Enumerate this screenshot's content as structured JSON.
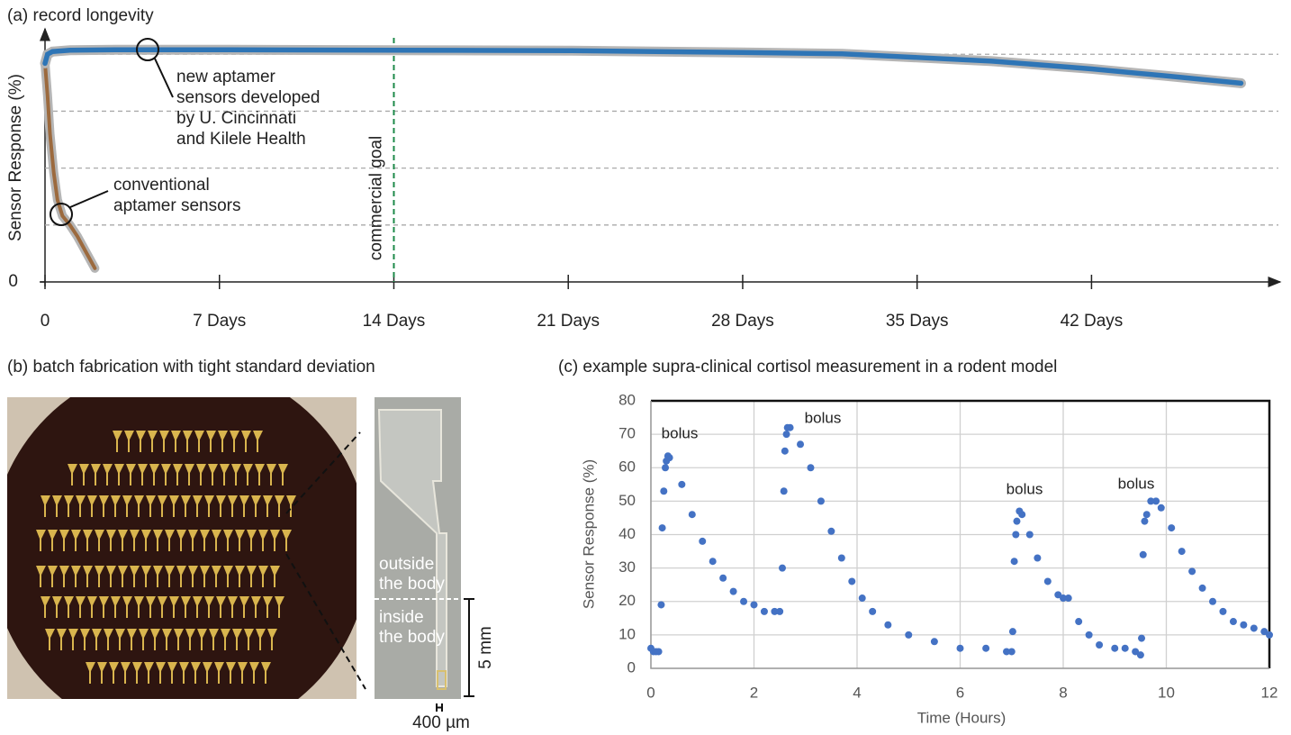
{
  "chart_data": [
    {
      "type": "line",
      "title": "(a) record longevity",
      "y_label": "Sensor Response (%)",
      "xlim": [
        0,
        49.5
      ],
      "ylim": [
        0,
        110
      ],
      "xticks": [
        0,
        {
          "value": 7,
          "label": "7 Days"
        },
        {
          "value": 14,
          "label": "14 Days"
        },
        {
          "value": 21,
          "label": "21 Days"
        },
        {
          "value": 28,
          "label": "28 Days"
        },
        {
          "value": 35,
          "label": "35 Days"
        },
        {
          "value": 42,
          "label": "42 Days"
        }
      ],
      "yticks": [
        0
      ],
      "ygrid": [
        25,
        50,
        75,
        100
      ],
      "goal": {
        "x": 14,
        "label": "commercial goal",
        "color": "#1e8a4a"
      },
      "series": [
        {
          "label": [
            "new aptamer",
            "sensors developed",
            "by U. Cincinnati",
            "and Kilele Health"
          ],
          "color": "#2e75b6",
          "x": [
            0,
            0.1,
            0.3,
            1,
            3,
            7,
            14,
            21,
            28,
            32,
            35,
            38,
            42,
            45,
            48
          ],
          "values": [
            96,
            100,
            101.2,
            101.8,
            102,
            102,
            101.8,
            101.6,
            100.8,
            100.2,
            98.6,
            97,
            93.6,
            90.5,
            87.3
          ]
        },
        {
          "label": [
            "conventional",
            "aptamer sensors"
          ],
          "color": "#9c6a3e",
          "x": [
            0,
            0.1,
            0.2,
            0.35,
            0.5,
            0.7,
            1.0,
            1.3,
            1.6,
            2.0
          ],
          "values": [
            96,
            82,
            65,
            48,
            36,
            29,
            25,
            20,
            14,
            6
          ]
        }
      ]
    },
    {
      "type": "scatter",
      "title": "(c) example supra-clinical cortisol measurement in a rodent model",
      "x_label": "Time (Hours)",
      "y_label": "Sensor Response (%)",
      "xlim": [
        0,
        12
      ],
      "ylim": [
        0,
        80
      ],
      "xticks": [
        0,
        2,
        4,
        6,
        8,
        10,
        12
      ],
      "yticks": [
        0,
        10,
        20,
        30,
        40,
        50,
        60,
        70,
        80
      ],
      "grid": true,
      "annotations": [
        "bolus",
        "bolus",
        "bolus",
        "bolus"
      ],
      "series": [
        {
          "color": "#4472c4",
          "x": [
            0.0,
            0.05,
            0.1,
            0.15,
            0.2,
            0.22,
            0.25,
            0.28,
            0.3,
            0.33,
            0.36,
            0.6,
            0.8,
            1.0,
            1.2,
            1.4,
            1.6,
            1.8,
            2.0,
            2.2,
            2.4,
            2.5,
            2.55,
            2.58,
            2.6,
            2.63,
            2.65,
            2.7,
            2.9,
            3.1,
            3.3,
            3.5,
            3.7,
            3.9,
            4.1,
            4.3,
            4.6,
            5.0,
            5.5,
            6.0,
            6.5,
            6.9,
            7.0,
            7.02,
            7.05,
            7.08,
            7.1,
            7.15,
            7.2,
            7.35,
            7.5,
            7.7,
            7.9,
            8.0,
            8.1,
            8.3,
            8.5,
            8.7,
            9.0,
            9.2,
            9.4,
            9.5,
            9.52,
            9.55,
            9.58,
            9.62,
            9.7,
            9.8,
            9.9,
            10.1,
            10.3,
            10.5,
            10.7,
            10.9,
            11.1,
            11.3,
            11.5,
            11.7,
            11.9,
            12.0
          ],
          "values": [
            6,
            5,
            5,
            5,
            19,
            42,
            53,
            60,
            62,
            63.5,
            63,
            55,
            46,
            38,
            32,
            27,
            23,
            20,
            19,
            17,
            17,
            17,
            30,
            53,
            65,
            70,
            72,
            72,
            67,
            60,
            50,
            41,
            33,
            26,
            21,
            17,
            13,
            10,
            8,
            6,
            6,
            5,
            5,
            11,
            32,
            40,
            44,
            47,
            46,
            40,
            33,
            26,
            22,
            21,
            21,
            14,
            10,
            7,
            6,
            6,
            5,
            4,
            9,
            34,
            44,
            46,
            50,
            50,
            48,
            42,
            35,
            29,
            24,
            20,
            17,
            14,
            13,
            12,
            11,
            10
          ]
        }
      ]
    }
  ],
  "panel_b": {
    "title": "(b) batch fabrication with tight standard deviation",
    "outside": [
      "outside",
      "the body"
    ],
    "inside": [
      "inside",
      "the body"
    ],
    "scale_length": "5 mm",
    "scale_width": "400 µm"
  }
}
